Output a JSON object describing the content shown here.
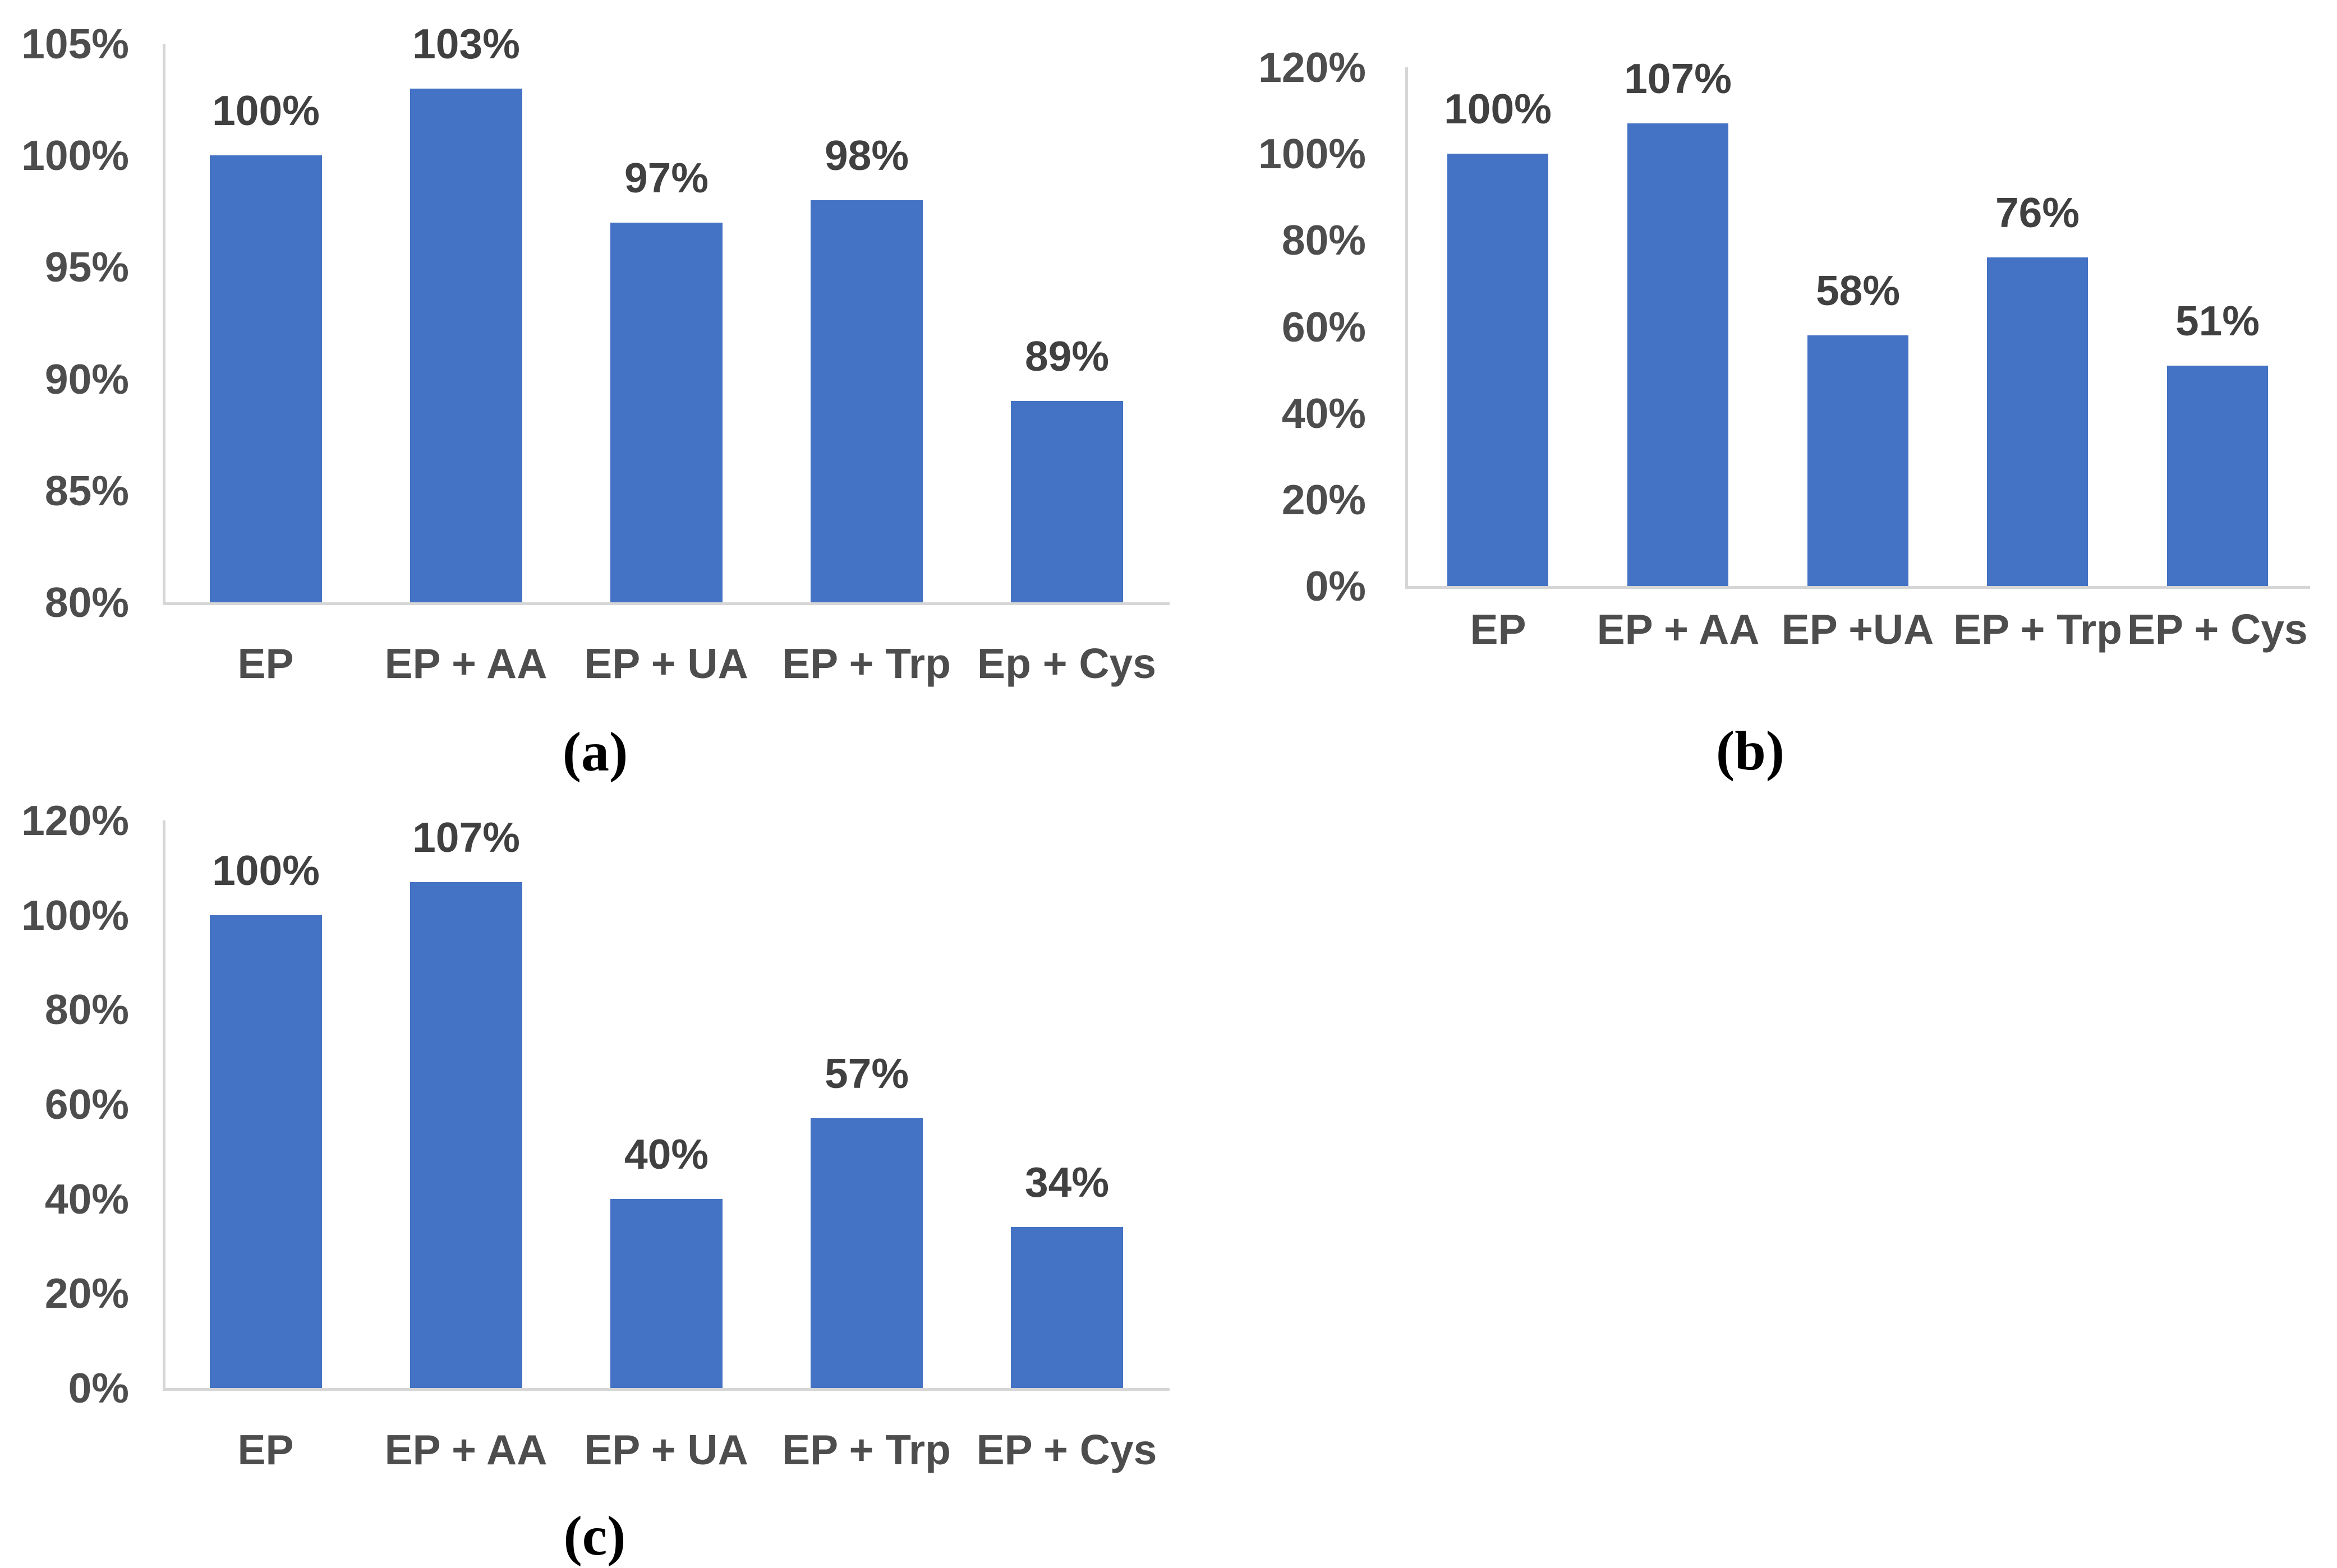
{
  "figure": {
    "background": "#ffffff"
  },
  "style": {
    "bar_color": "#4472C4",
    "data_label_color": "#404040",
    "tick_label_color": "#4D4D4D",
    "category_label_color": "#4D4D4D",
    "axis_line_color": "#D6D6D6",
    "caption_color": "#000000"
  },
  "chart_data": [
    {
      "panel": "a",
      "type": "bar",
      "title": "",
      "categories": [
        "EP",
        "EP + AA",
        "EP + UA",
        "EP + Trp",
        "Ep + Cys"
      ],
      "values": [
        100,
        103,
        97,
        98,
        89
      ],
      "data_labels": [
        "100%",
        "103%",
        "97%",
        "98%",
        "89%"
      ],
      "ylim": [
        80,
        105
      ],
      "ytick_labels": [
        "105%",
        "100%",
        "95%",
        "90%",
        "85%",
        "80%"
      ],
      "grid": false,
      "legend": false,
      "caption": "(a)"
    },
    {
      "panel": "b",
      "type": "bar",
      "title": "",
      "categories": [
        "EP",
        "EP + AA",
        "EP +UA",
        "EP + Trp",
        "EP + Cys"
      ],
      "values": [
        100,
        107,
        58,
        76,
        51
      ],
      "data_labels": [
        "100%",
        "107%",
        "58%",
        "76%",
        "51%"
      ],
      "ylim": [
        0,
        120
      ],
      "ytick_labels": [
        "120%",
        "100%",
        "80%",
        "60%",
        "40%",
        "20%",
        "0%"
      ],
      "grid": false,
      "legend": false,
      "caption": "(b)"
    },
    {
      "panel": "c",
      "type": "bar",
      "title": "",
      "categories": [
        "EP",
        "EP + AA",
        "EP + UA",
        "EP + Trp",
        "EP + Cys"
      ],
      "values": [
        100,
        107,
        40,
        57,
        34
      ],
      "data_labels": [
        "100%",
        "107%",
        "40%",
        "57%",
        "34%"
      ],
      "ylim": [
        0,
        120
      ],
      "ytick_labels": [
        "120%",
        "100%",
        "80%",
        "60%",
        "40%",
        "20%",
        "0%"
      ],
      "grid": false,
      "legend": false,
      "caption": "(c)"
    }
  ]
}
